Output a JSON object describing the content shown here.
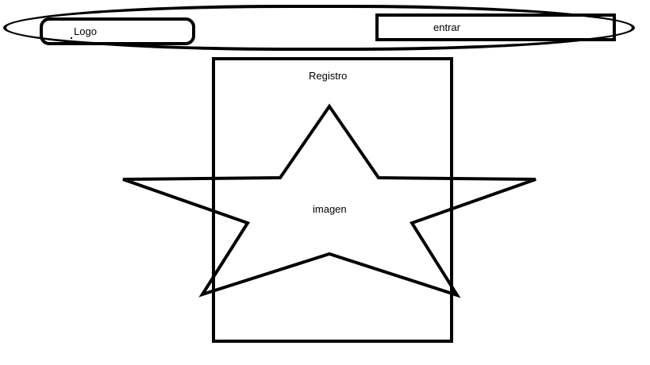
{
  "header": {
    "logo_label": "Logo",
    "enter_label": "entrar"
  },
  "main": {
    "title": "Registro",
    "image_label": "imagen"
  },
  "colors": {
    "ink": "#000000",
    "background": "#ffffff"
  },
  "icons": {
    "image_placeholder": "star-icon"
  }
}
